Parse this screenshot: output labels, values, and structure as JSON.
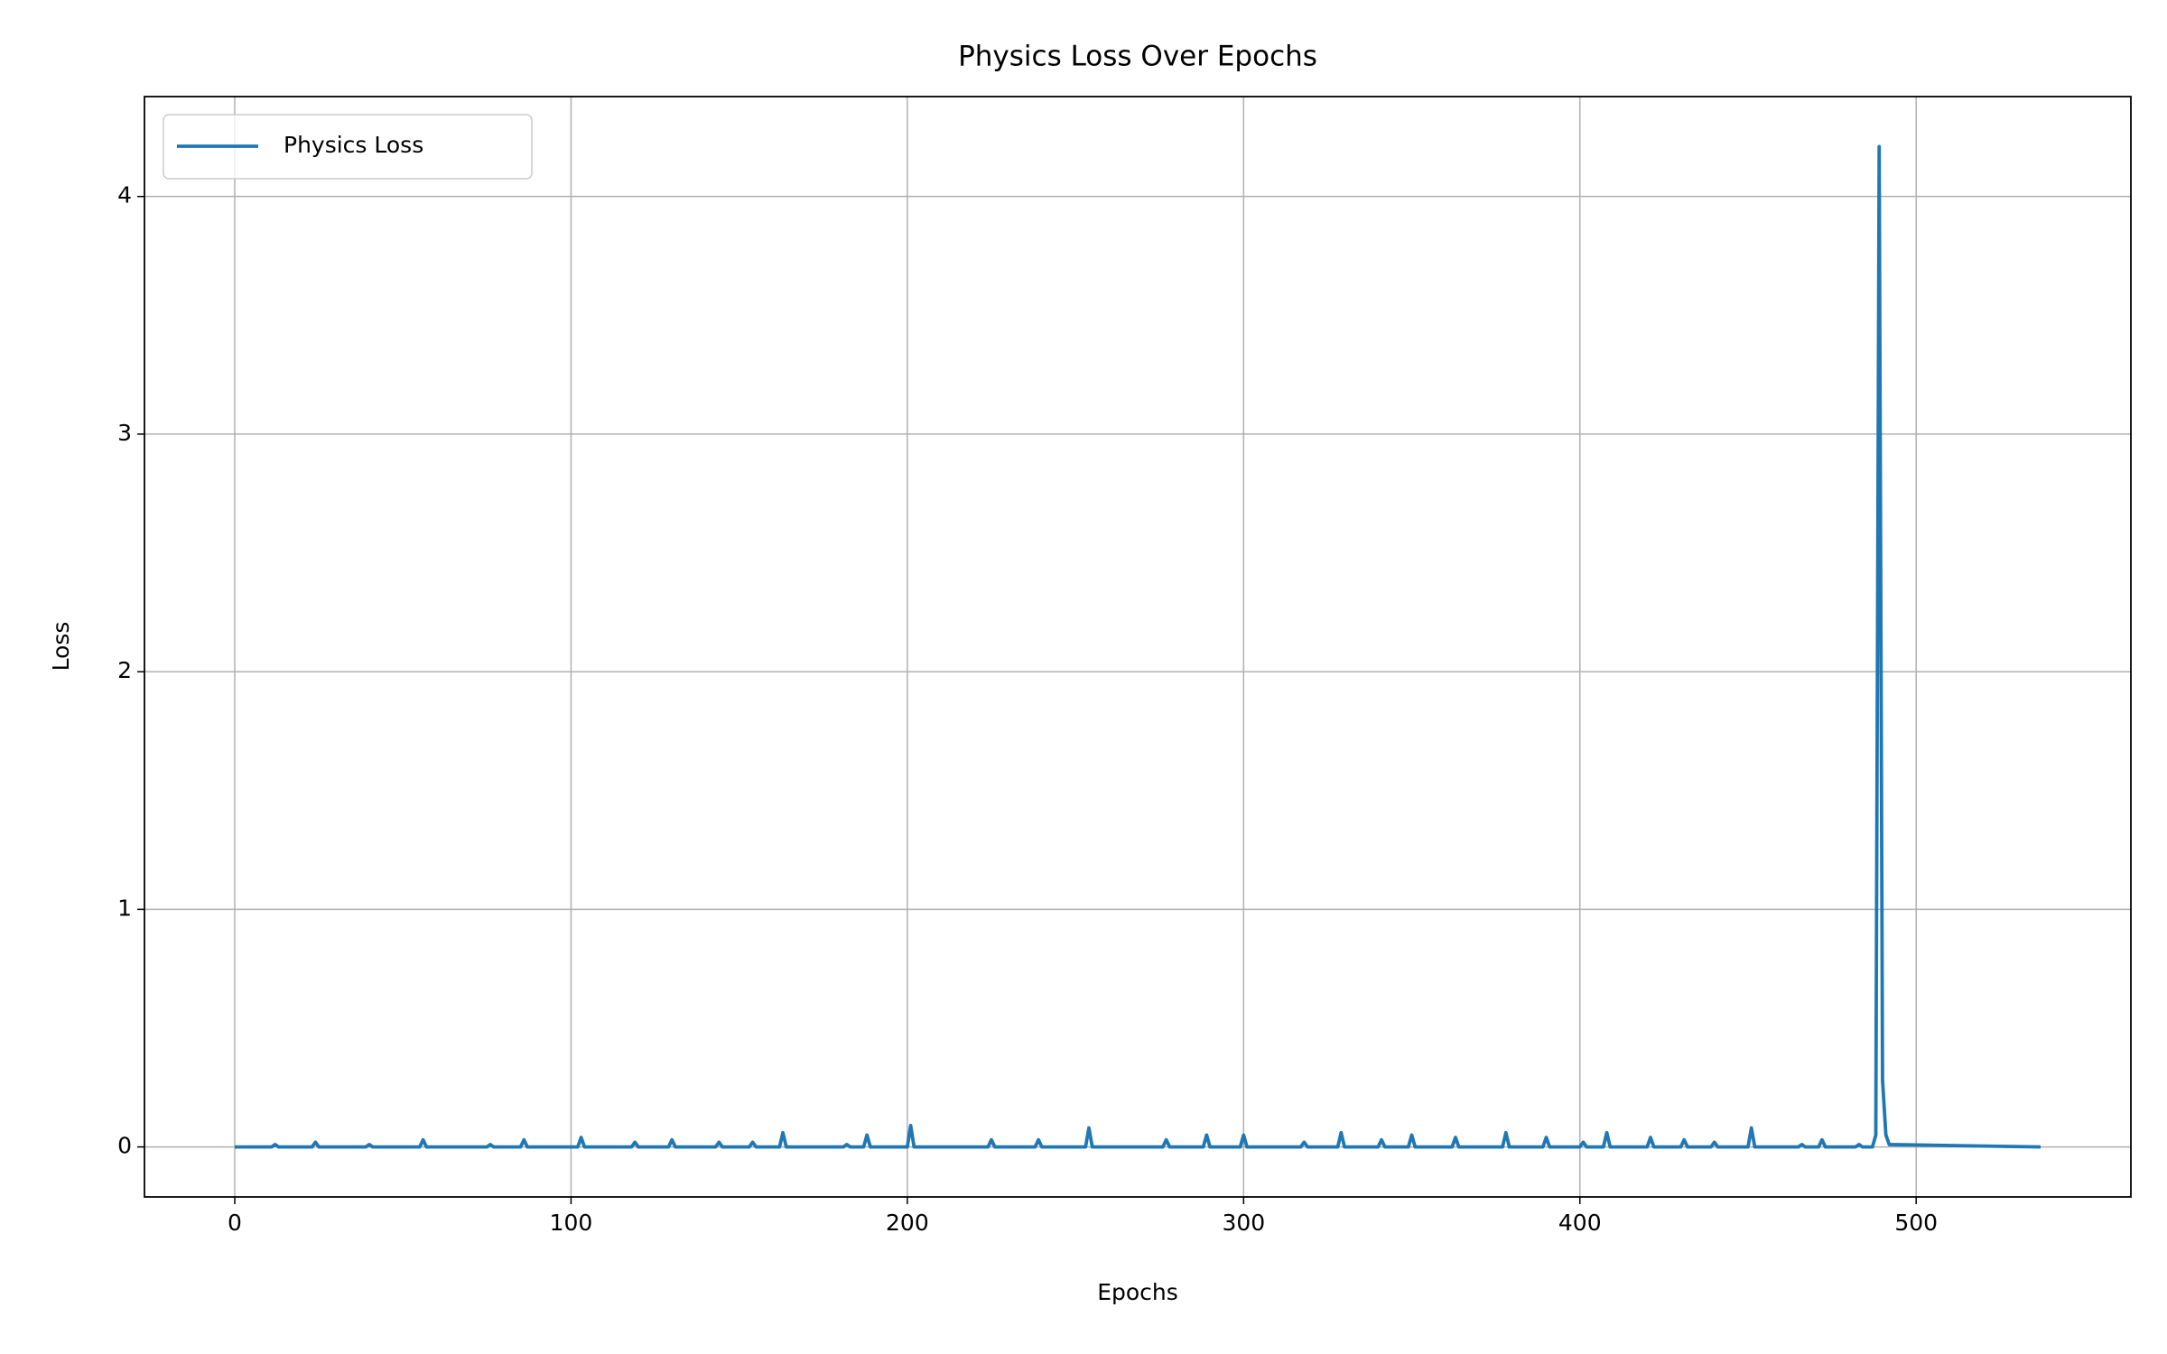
{
  "chart_data": {
    "type": "line",
    "title": "Physics Loss Over Epochs",
    "x_label": "Epochs",
    "y_label": "Loss",
    "xlim": [
      -26.85,
      563.85
    ],
    "ylim": [
      -0.2105,
      4.4205
    ],
    "xticks": [
      0,
      100,
      200,
      300,
      400,
      500
    ],
    "yticks": [
      0,
      1,
      2,
      3,
      4
    ],
    "grid": true,
    "legend": "upper left",
    "x": [
      0,
      11,
      12,
      13,
      23,
      24,
      25,
      39,
      40,
      41,
      55,
      56,
      57,
      75,
      76,
      77,
      85,
      86,
      87,
      102,
      103,
      104,
      118,
      119,
      120,
      129,
      130,
      131,
      143,
      144,
      145,
      153,
      154,
      155,
      162,
      163,
      164,
      181,
      182,
      183,
      187,
      188,
      189,
      200,
      201,
      202,
      224,
      225,
      226,
      238,
      239,
      240,
      253,
      254,
      255,
      276,
      277,
      278,
      288,
      289,
      290,
      299,
      300,
      301,
      317,
      318,
      319,
      328,
      329,
      330,
      340,
      341,
      342,
      349,
      350,
      351,
      362,
      363,
      364,
      377,
      378,
      379,
      389,
      390,
      391,
      400,
      401,
      402,
      407,
      408,
      409,
      420,
      421,
      422,
      430,
      431,
      432,
      439,
      440,
      441,
      450,
      451,
      452,
      465,
      466,
      467,
      471,
      472,
      473,
      482,
      483,
      484,
      487,
      488,
      489,
      490,
      491,
      492,
      537
    ],
    "series": [
      {
        "name": "Physics Loss",
        "color": "#1f77b4",
        "values": [
          0,
          0,
          0.01,
          0,
          0,
          0.02,
          0,
          0,
          0.01,
          0,
          0,
          0.03,
          0,
          0,
          0.01,
          0,
          0,
          0.03,
          0,
          0,
          0.04,
          0,
          0,
          0.02,
          0,
          0,
          0.03,
          0,
          0,
          0.02,
          0,
          0,
          0.02,
          0,
          0,
          0.06,
          0,
          0,
          0.01,
          0,
          0,
          0.05,
          0,
          0,
          0.09,
          0,
          0,
          0.03,
          0,
          0,
          0.03,
          0,
          0,
          0.08,
          0,
          0,
          0.03,
          0,
          0,
          0.05,
          0,
          0,
          0.05,
          0,
          0,
          0.02,
          0,
          0,
          0.06,
          0,
          0,
          0.03,
          0,
          0,
          0.05,
          0,
          0,
          0.04,
          0,
          0,
          0.06,
          0,
          0,
          0.04,
          0,
          0,
          0.02,
          0,
          0,
          0.06,
          0,
          0,
          0.04,
          0,
          0,
          0.03,
          0,
          0,
          0.02,
          0,
          0,
          0.08,
          0,
          0,
          0.01,
          0,
          0,
          0.03,
          0,
          0,
          0.01,
          0,
          0,
          0.05,
          4.21,
          0.28,
          0.05,
          0.01,
          0
        ]
      }
    ]
  }
}
